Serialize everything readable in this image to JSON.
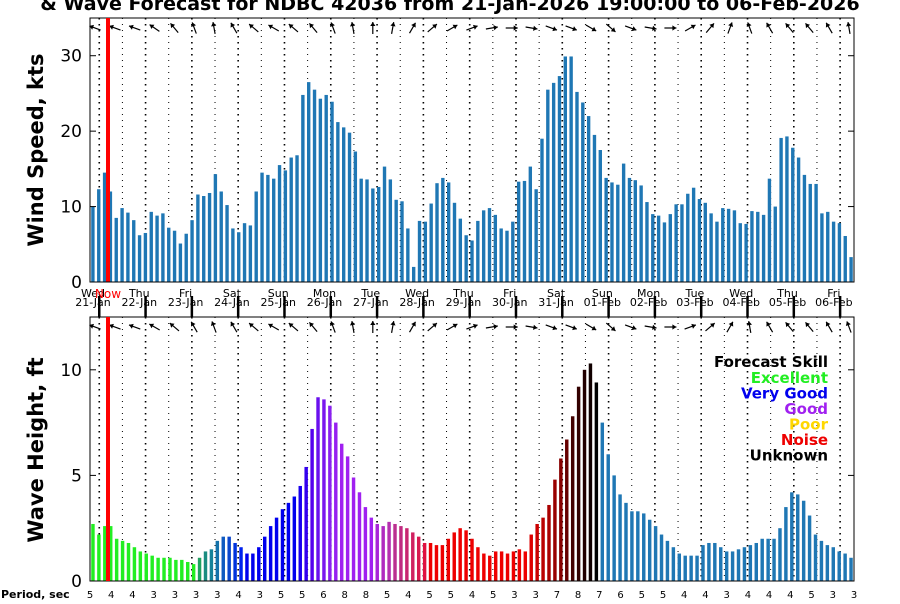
{
  "chart_data": [
    {
      "type": "bar",
      "title": "& Wave Forecast for NDBC 42036 from 21-Jan-2026 19:00:00 to 06-Feb-2026",
      "ylabel": "Wind Speed, kts",
      "ylim": [
        0,
        35
      ],
      "yticks": [
        0,
        10,
        20,
        30
      ],
      "x_range_days": [
        0,
        16.5
      ],
      "bar_color": "#1f77b4",
      "now_marker_color": "#ff0000",
      "now_label": "Now",
      "now_day": 0.4,
      "day_labels": [
        {
          "dow": "Wed",
          "date": "21-Jan"
        },
        {
          "dow": "Thu",
          "date": "22-Jan"
        },
        {
          "dow": "Fri",
          "date": "23-Jan"
        },
        {
          "dow": "Sat",
          "date": "24-Jan"
        },
        {
          "dow": "Sun",
          "date": "25-Jan"
        },
        {
          "dow": "Mon",
          "date": "26-Jan"
        },
        {
          "dow": "Tue",
          "date": "27-Jan"
        },
        {
          "dow": "Wed",
          "date": "28-Jan"
        },
        {
          "dow": "Thu",
          "date": "29-Jan"
        },
        {
          "dow": "Fri",
          "date": "30-Jan"
        },
        {
          "dow": "Sat",
          "date": "31-Jan"
        },
        {
          "dow": "Sun",
          "date": "01-Feb"
        },
        {
          "dow": "Mon",
          "date": "02-Feb"
        },
        {
          "dow": "Tue",
          "date": "03-Feb"
        },
        {
          "dow": "Wed",
          "date": "04-Feb"
        },
        {
          "dow": "Thu",
          "date": "05-Feb"
        },
        {
          "dow": "Fri",
          "date": "06-Feb"
        }
      ],
      "values": [
        10,
        12.3,
        14.5,
        12,
        8.5,
        9.8,
        9.2,
        8.2,
        6.2,
        6.5,
        9.3,
        8.8,
        9.1,
        7.2,
        6.8,
        5.1,
        6.4,
        8.2,
        11.6,
        11.4,
        11.8,
        14.3,
        12,
        10.2,
        7.1,
        6.6,
        7.8,
        7.5,
        12,
        14.5,
        14.2,
        13.7,
        15.5,
        14.8,
        16.5,
        16.8,
        24.8,
        26.5,
        25.5,
        24.3,
        24.8,
        23.9,
        21.2,
        20.5,
        19.8,
        17.3,
        13.7,
        13.6,
        12.4,
        12.6,
        15.3,
        13.6,
        10.9,
        10.7,
        7.1,
        2,
        8.1,
        8,
        10.4,
        13.1,
        13.8,
        13.2,
        10.5,
        8.4,
        6.2,
        5.5,
        8.1,
        9.5,
        9.8,
        8.9,
        7.1,
        6.8,
        8,
        13.3,
        13.4,
        15.3,
        12.3,
        19,
        25.5,
        26.4,
        27.3,
        29.9,
        29.9,
        25.2,
        23.8,
        22,
        19.5,
        17.5,
        13.8,
        13.2,
        12.9,
        15.7,
        13.8,
        13.5,
        12.8,
        10.6,
        9,
        8.8,
        7.9,
        9,
        10.3,
        10.3,
        11.7,
        12.5,
        11,
        10.5,
        9.1,
        8,
        9.8,
        9.7,
        9.5,
        7.8,
        7.7,
        9.4,
        9.3,
        8.9,
        13.7,
        10,
        19.1,
        19.3,
        17.8,
        16.5,
        14.2,
        13,
        13,
        9.1,
        9.3,
        8,
        7.8,
        6.1,
        3.3
      ]
    },
    {
      "type": "bar",
      "ylabel": "Wave Height, ft",
      "ylim": [
        0,
        12.5
      ],
      "yticks": [
        0,
        5,
        10
      ],
      "x_range_days": [
        0,
        16.5
      ],
      "period_axis_label": "Period, sec",
      "legend_title": "Forecast Skill",
      "legend_placement": "top-right",
      "legend": [
        {
          "label": "Excellent",
          "color": "#22ee22"
        },
        {
          "label": "Very Good",
          "color": "#0000ee"
        },
        {
          "label": "Good",
          "color": "#a020f0"
        },
        {
          "label": "Poor",
          "color": "#ffd700"
        },
        {
          "label": "Noise",
          "color": "#ee0000"
        },
        {
          "label": "Unknown",
          "color": "#000000"
        }
      ],
      "period_labels": [
        "5",
        "4",
        "4",
        "3",
        "3",
        "3",
        "3",
        "4",
        "3",
        "5",
        "5",
        "6",
        "8",
        "8",
        "5",
        "4",
        "5",
        "5",
        "4",
        "5",
        "3",
        "3",
        "7",
        "8",
        "7",
        "6",
        "5",
        "5",
        "4",
        "4",
        "3",
        "4",
        "4",
        "4",
        "5",
        "3",
        "3"
      ],
      "values": [
        2.7,
        2.2,
        2.6,
        2.6,
        2,
        1.9,
        1.8,
        1.6,
        1.4,
        1.3,
        1.2,
        1.1,
        1.1,
        1.1,
        1,
        1,
        0.9,
        0.8,
        1.1,
        1.4,
        1.5,
        1.9,
        2.1,
        2.1,
        1.8,
        1.6,
        1.3,
        1.3,
        1.6,
        2.1,
        2.6,
        3,
        3.4,
        3.7,
        4,
        4.5,
        5.4,
        7.2,
        8.7,
        8.6,
        8.3,
        7.5,
        6.5,
        5.9,
        4.9,
        4.2,
        3.5,
        3,
        2.7,
        2.6,
        2.8,
        2.7,
        2.6,
        2.5,
        2.3,
        2.1,
        1.8,
        1.8,
        1.7,
        1.7,
        2,
        2.3,
        2.5,
        2.4,
        2,
        1.6,
        1.3,
        1.2,
        1.4,
        1.4,
        1.3,
        1.4,
        1.5,
        1.4,
        2.2,
        2.7,
        3,
        3.6,
        4.8,
        5.8,
        6.7,
        7.8,
        9.2,
        10,
        10.3,
        9.4,
        7.5,
        6,
        5,
        4.1,
        3.7,
        3.3,
        3.3,
        3.2,
        2.9,
        2.6,
        2.2,
        1.9,
        1.6,
        1.3,
        1.2,
        1.2,
        1.2,
        1.7,
        1.8,
        1.8,
        1.6,
        1.4,
        1.4,
        1.5,
        1.6,
        1.7,
        1.8,
        2,
        2,
        2,
        2.5,
        3.5,
        4.2,
        4.1,
        3.8,
        3.1,
        2.2,
        1.9,
        1.7,
        1.6,
        1.4,
        1.3,
        1.1
      ],
      "bar_colors": [
        "#22ee22",
        "#22ee22",
        "#22ee22",
        "#22ee22",
        "#22ee22",
        "#22ee22",
        "#22ee22",
        "#22ee22",
        "#22ee22",
        "#22ee22",
        "#22ee22",
        "#22ee22",
        "#22ee22",
        "#22ee22",
        "#22ee22",
        "#22ee22",
        "#22ee22",
        "#22ee22",
        "#1fa060",
        "#1a8c80",
        "#168299",
        "#1472aa",
        "#0f5ac0",
        "#0a46cc",
        "#0033dd",
        "#0022ee",
        "#0000ee",
        "#0000ee",
        "#0000ee",
        "#0000ee",
        "#0000ee",
        "#0000ee",
        "#0000ee",
        "#0000ee",
        "#0000ee",
        "#1a00ee",
        "#3300ee",
        "#5500ee",
        "#6a10ee",
        "#7a18ee",
        "#8a20f0",
        "#9620f0",
        "#a020f0",
        "#a020f0",
        "#a020f0",
        "#a020f0",
        "#a020f0",
        "#a020f0",
        "#a825d8",
        "#b02ac0",
        "#b52fb0",
        "#bb3090",
        "#c02a80",
        "#c82570",
        "#d02060",
        "#d81850",
        "#e01040",
        "#ee0000",
        "#ee0000",
        "#ee0000",
        "#ee0000",
        "#ee0000",
        "#ee0000",
        "#ee0000",
        "#ee0000",
        "#ee0000",
        "#ee0000",
        "#ee0000",
        "#ee0000",
        "#ee0000",
        "#ee0000",
        "#ee0000",
        "#ee0000",
        "#ee0000",
        "#dd0000",
        "#cc0000",
        "#bb0000",
        "#aa0000",
        "#990000",
        "#880000",
        "#660000",
        "#440000",
        "#330000",
        "#220000",
        "#110000",
        "#000000",
        "#1f77b4",
        "#1f77b4",
        "#1f77b4",
        "#1f77b4",
        "#1f77b4",
        "#1f77b4",
        "#1f77b4",
        "#1f77b4",
        "#1f77b4",
        "#1f77b4",
        "#1f77b4",
        "#1f77b4",
        "#1f77b4",
        "#1f77b4",
        "#1f77b4",
        "#1f77b4",
        "#1f77b4",
        "#1f77b4",
        "#1f77b4",
        "#1f77b4",
        "#1f77b4",
        "#1f77b4",
        "#1f77b4",
        "#1f77b4",
        "#1f77b4",
        "#1f77b4",
        "#1f77b4",
        "#1f77b4",
        "#1f77b4",
        "#1f77b4",
        "#1f77b4",
        "#1f77b4",
        "#1f77b4",
        "#1f77b4",
        "#1f77b4",
        "#1f77b4",
        "#1f77b4",
        "#1f77b4",
        "#1f77b4",
        "#1f77b4",
        "#1f77b4",
        "#1f77b4",
        "#1f77b4"
      ]
    }
  ],
  "wind_arrow_angles_deg": [
    200,
    200,
    200,
    215,
    230,
    250,
    260,
    240,
    220,
    210,
    220,
    230,
    250,
    260,
    270,
    280,
    300,
    320,
    330,
    340,
    350,
    0,
    10,
    20,
    20,
    30,
    40,
    20,
    10,
    0,
    330,
    310,
    290,
    250,
    240,
    230,
    230,
    240,
    260
  ],
  "wave_arrow_angles_deg": [
    200,
    200,
    200,
    210,
    220,
    240,
    250,
    240,
    220,
    210,
    220,
    230,
    250,
    260,
    270,
    280,
    300,
    320,
    330,
    340,
    350,
    0,
    10,
    20,
    20,
    30,
    40,
    20,
    10,
    0,
    340,
    320,
    300,
    260,
    240,
    230,
    230,
    240,
    250
  ]
}
